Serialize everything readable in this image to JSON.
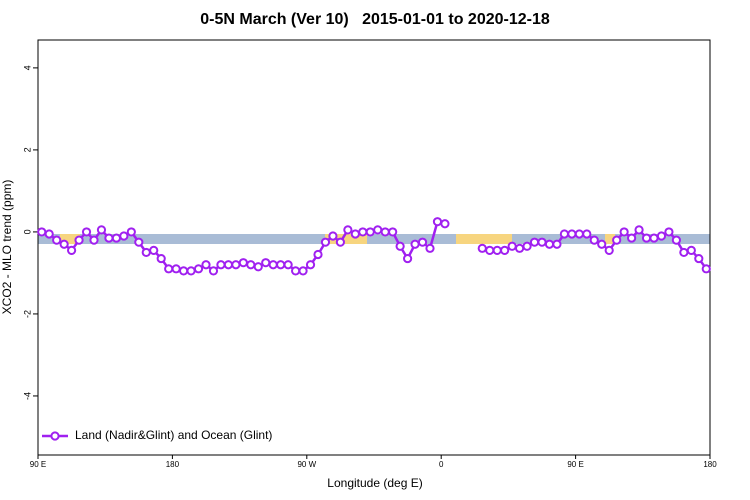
{
  "chart_data": {
    "type": "line",
    "title": "0-5N March (Ver 10)   2015-01-01 to 2020-12-18",
    "x_label": "Longitude (deg E)",
    "y_label": "XCO2 - MLO trend (ppm)",
    "xlim": [
      90,
      540
    ],
    "ylim": [
      -5.44,
      4.68
    ],
    "xticks": [
      {
        "value": 90,
        "label": "90 E"
      },
      {
        "value": 180,
        "label": "180"
      },
      {
        "value": 270,
        "label": "90 W"
      },
      {
        "value": 360,
        "label": "0"
      },
      {
        "value": 450,
        "label": "90 E"
      },
      {
        "value": 540,
        "label": "180"
      }
    ],
    "yticks": [
      -4,
      -2,
      0,
      2,
      4
    ],
    "legend_position": "bottom-left",
    "x": [
      92.5,
      97.5,
      102.5,
      107.5,
      112.5,
      117.5,
      122.5,
      127.5,
      132.5,
      137.5,
      142.5,
      147.5,
      152.5,
      157.5,
      162.5,
      167.5,
      172.5,
      177.5,
      182.5,
      187.5,
      192.5,
      197.5,
      202.5,
      207.5,
      212.5,
      217.5,
      222.5,
      227.5,
      232.5,
      237.5,
      242.5,
      247.5,
      252.5,
      257.5,
      262.5,
      267.5,
      272.5,
      277.5,
      282.5,
      287.5,
      292.5,
      297.5,
      302.5,
      307.5,
      312.5,
      317.5,
      322.5,
      327.5,
      332.5,
      337.5,
      342.5,
      347.5,
      352.5,
      357.5,
      362.5,
      367.5,
      372.5,
      377.5,
      382.5,
      387.5,
      392.5,
      397.5,
      402.5,
      407.5,
      412.5,
      417.5,
      422.5,
      427.5,
      432.5,
      437.5,
      442.5,
      447.5,
      452.5,
      457.5,
      462.5,
      467.5,
      472.5,
      477.5,
      482.5,
      487.5,
      492.5,
      497.5,
      502.5,
      507.5,
      512.5,
      517.5,
      522.5,
      527.5,
      532.5,
      537.5
    ],
    "series": [
      {
        "name": "Land (Nadir&Glint) and Ocean (Glint)",
        "color": "#a020f0",
        "values": [
          0,
          -0.05,
          -0.2,
          -0.3,
          -0.45,
          -0.2,
          0,
          -0.2,
          0.05,
          -0.15,
          -0.15,
          -0.1,
          0,
          -0.25,
          -0.5,
          -0.45,
          -0.65,
          -0.9,
          -0.9,
          -0.95,
          -0.95,
          -0.9,
          -0.8,
          -0.95,
          -0.8,
          -0.8,
          -0.8,
          -0.75,
          -0.8,
          -0.85,
          -0.75,
          -0.8,
          -0.8,
          -0.8,
          -0.95,
          -0.95,
          -0.8,
          -0.55,
          -0.25,
          -0.1,
          -0.25,
          0.05,
          -0.05,
          0,
          0,
          0.05,
          0,
          0,
          -0.35,
          -0.65,
          -0.3,
          -0.25,
          -0.4,
          0.25,
          0.2,
          null,
          null,
          null,
          null,
          -0.4,
          -0.45,
          -0.45,
          -0.45,
          -0.35,
          -0.4,
          -0.35,
          -0.25,
          -0.25,
          -0.3,
          -0.3,
          -0.05,
          -0.05,
          -0.05,
          -0.05,
          -0.2,
          -0.3,
          -0.45,
          -0.2,
          0,
          -0.15,
          0.05,
          -0.15,
          -0.15,
          -0.1,
          0,
          -0.2,
          -0.5,
          -0.45,
          -0.65,
          -0.9
        ]
      }
    ]
  }
}
